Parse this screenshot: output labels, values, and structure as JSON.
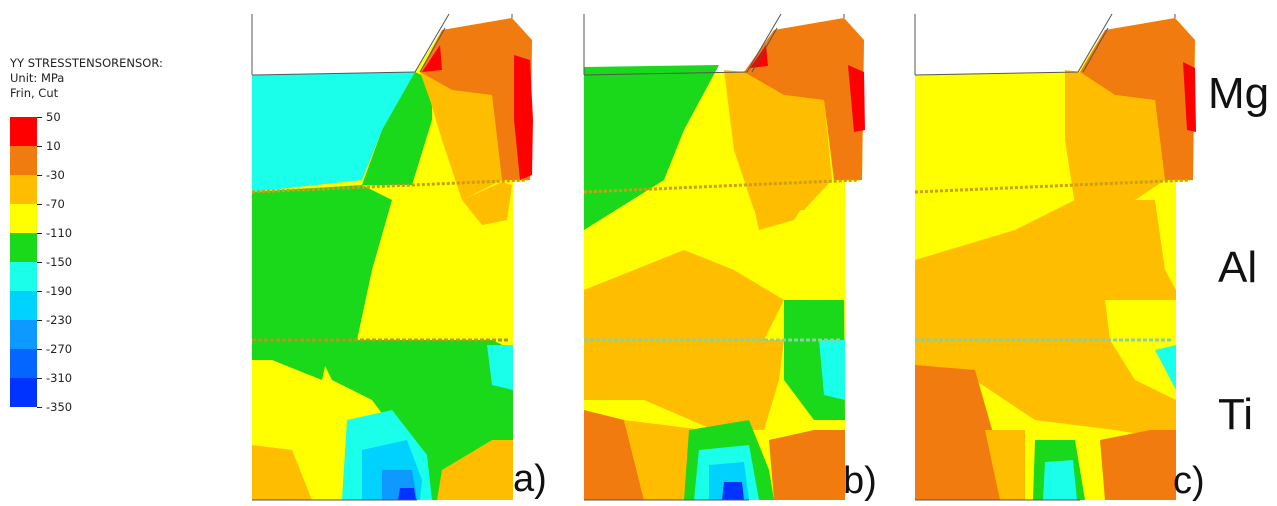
{
  "legend": {
    "title_lines": [
      "YY STRESSTENSORENSOR:",
      "Unit: MPa",
      "Frin, Cut"
    ],
    "levels": [
      {
        "value": "50",
        "color": "#ff0000"
      },
      {
        "value": "10",
        "color": "#f27b0f"
      },
      {
        "value": "-30",
        "color": "#ffbd00"
      },
      {
        "value": "-70",
        "color": "#ffff00"
      },
      {
        "value": "-110",
        "color": "#1ad81a"
      },
      {
        "value": "-150",
        "color": "#19ffea"
      },
      {
        "value": "-190",
        "color": "#00d2ff"
      },
      {
        "value": "-230",
        "color": "#0d99ff"
      },
      {
        "value": "-270",
        "color": "#0566ff"
      },
      {
        "value": "-310",
        "color": "#0033ff"
      },
      {
        "value": "-350",
        "color": "#0000e6"
      }
    ],
    "extra_label": ""
  },
  "materials": {
    "top": "Mg",
    "middle": "Al",
    "bottom": "Ti"
  },
  "panels": [
    {
      "label": "a)"
    },
    {
      "label": "b)"
    },
    {
      "label": "c)"
    }
  ],
  "colors": {
    "red": "#ff0000",
    "orange": "#f27b0f",
    "lightorange": "#ffbd00",
    "yellow": "#ffff00",
    "green": "#1ad81a",
    "cyan": "#19ffea",
    "sky": "#00d2ff",
    "blue": "#0d99ff",
    "deepblue": "#0033ff"
  }
}
